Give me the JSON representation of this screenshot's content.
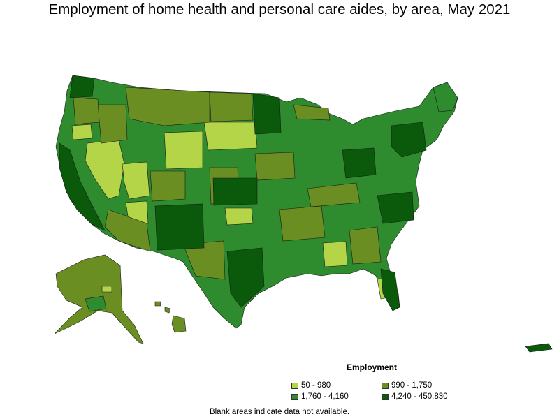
{
  "title": "Employment of home health and personal care aides, by area, May 2021",
  "legend": {
    "title": "Employment",
    "items": [
      {
        "label": "50 - 980",
        "color": "#b5d549"
      },
      {
        "label": "990 - 1,750",
        "color": "#6b8e23"
      },
      {
        "label": "1,760 - 4,160",
        "color": "#2e8b2e"
      },
      {
        "label": "4,240 - 450,830",
        "color": "#0b5a0b"
      }
    ]
  },
  "note": "Blank areas indicate data not available."
}
